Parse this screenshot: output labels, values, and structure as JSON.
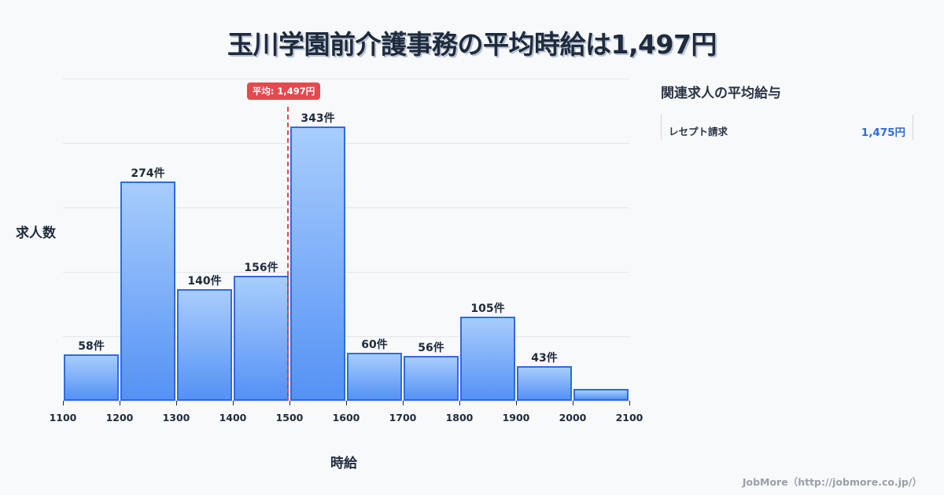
{
  "title": "玉川学園前介護事務の平均時給は1,497円",
  "average": {
    "label": "平均: 1,497円",
    "value": 1497,
    "color": "#e5484d"
  },
  "axes": {
    "ylabel": "求人数",
    "xlabel": "時給"
  },
  "side": {
    "title": "関連求人の平均給与",
    "items": [
      {
        "name": "レセプト請求",
        "value": "1,475円"
      }
    ]
  },
  "footer": "JobMore（http://jobmore.co.jp/）",
  "x_ticks": [
    "1100",
    "1200",
    "1300",
    "1400",
    "1500",
    "1600",
    "1700",
    "1800",
    "1900",
    "2000",
    "2100"
  ],
  "bar_labels": [
    "58件",
    "274件",
    "140件",
    "156件",
    "343件",
    "60件",
    "56件",
    "105件",
    "43件",
    ""
  ],
  "chart_data": {
    "type": "bar",
    "title": "玉川学園前介護事務の平均時給は1,497円",
    "xlabel": "時給",
    "ylabel": "求人数",
    "categories": [
      "1100-1200",
      "1200-1300",
      "1300-1400",
      "1400-1500",
      "1500-1600",
      "1600-1700",
      "1700-1800",
      "1800-1900",
      "1900-2000",
      "2000-2100"
    ],
    "values": [
      58,
      274,
      140,
      156,
      343,
      60,
      56,
      105,
      43,
      15
    ],
    "value_labels": [
      "58件",
      "274件",
      "140件",
      "156件",
      "343件",
      "60件",
      "56件",
      "105件",
      "43件",
      ""
    ],
    "x_ticks": [
      1100,
      1200,
      1300,
      1400,
      1500,
      1600,
      1700,
      1800,
      1900,
      2000,
      2100
    ],
    "ylim": [
      0,
      403
    ],
    "grid": true,
    "annotations": [
      {
        "type": "vline",
        "x": 1497,
        "label": "平均: 1,497円",
        "style": "dashed",
        "color": "#e5484d"
      }
    ],
    "bar_color": "#5592f5",
    "bar_edge_color": "#2f6be0"
  }
}
